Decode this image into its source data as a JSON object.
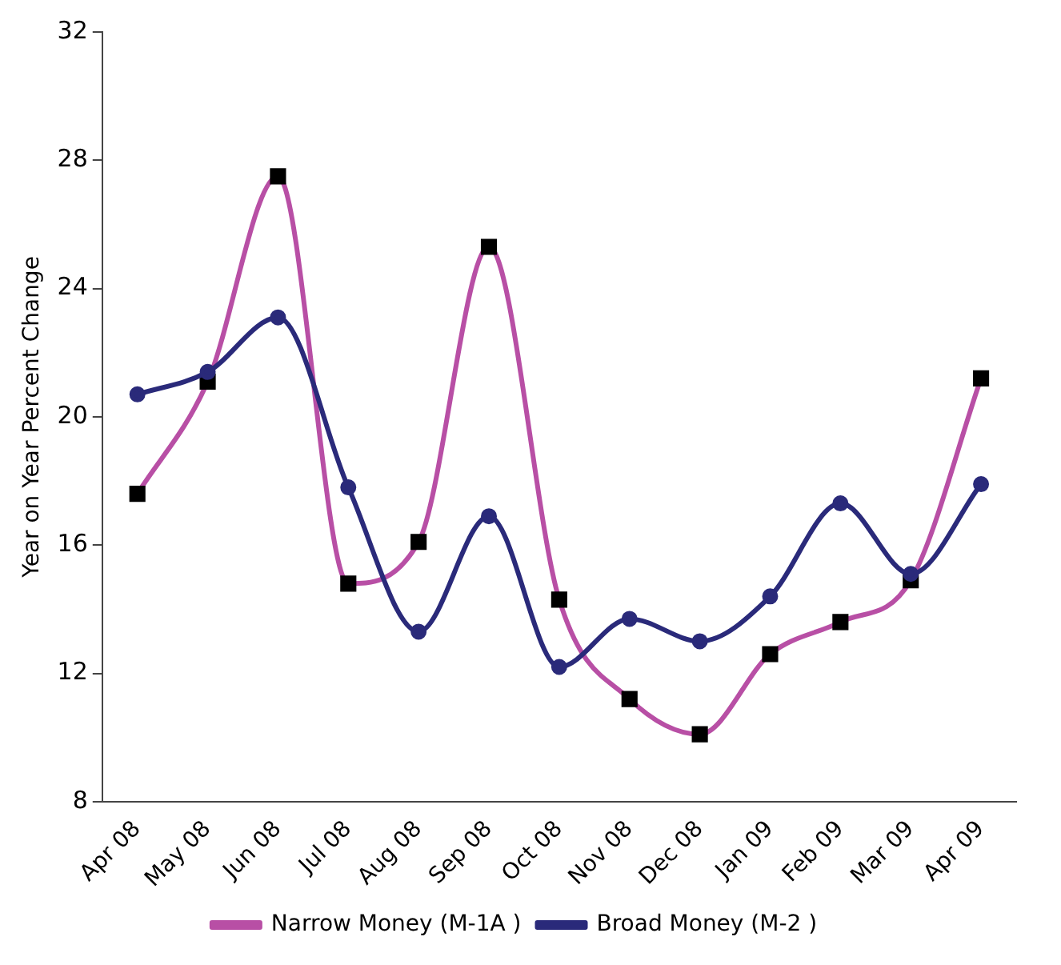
{
  "chart_data": {
    "type": "line",
    "ylabel": "Year on Year Percent Change",
    "categories": [
      "Apr 08",
      "May 08",
      "Jun 08",
      "Jul 08",
      "Aug 08",
      "Sep 08",
      "Oct 08",
      "Nov 08",
      "Dec 08",
      "Jan 09",
      "Feb 09",
      "Mar 09",
      "Apr 09"
    ],
    "series": [
      {
        "name": "Narrow Money (M-1A )",
        "color": "#b84fa5",
        "marker": "square",
        "values": [
          17.6,
          21.1,
          27.5,
          14.8,
          16.1,
          25.3,
          14.3,
          11.2,
          10.1,
          12.6,
          13.6,
          14.9,
          21.2
        ]
      },
      {
        "name": "Broad Money (M-2 )",
        "color": "#2a2a7a",
        "marker": "circle",
        "values": [
          20.7,
          21.4,
          23.1,
          17.8,
          13.3,
          16.9,
          12.2,
          13.7,
          13.0,
          14.4,
          17.3,
          15.1,
          17.9
        ]
      }
    ],
    "ylim": [
      8,
      32
    ],
    "yticks": [
      8,
      12,
      16,
      20,
      24,
      28,
      32
    ],
    "grid": false,
    "legend": "bottom"
  }
}
